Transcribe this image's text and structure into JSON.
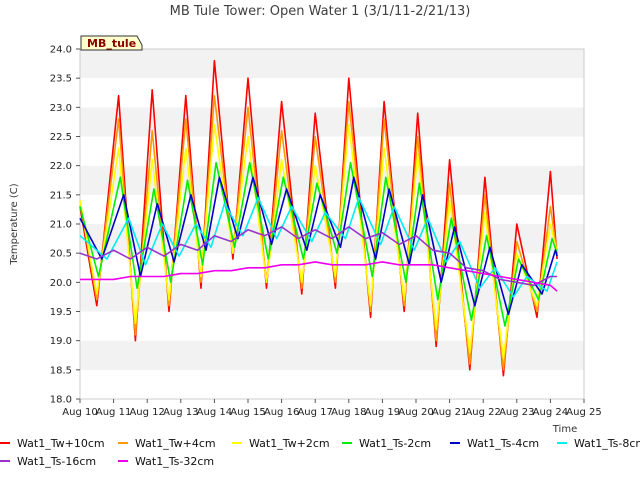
{
  "chart_data": {
    "type": "line",
    "title": "MB Tule Tower: Open Water 1 (3/1/11-2/21/13)",
    "station_label": "MB_tule",
    "xlabel": "Time",
    "ylabel": "Temperature (C)",
    "xlim": [
      10,
      25
    ],
    "ylim": [
      18.0,
      24.0
    ],
    "x_ticks": [
      10,
      11,
      12,
      13,
      14,
      15,
      16,
      17,
      18,
      19,
      20,
      21,
      22,
      23,
      24,
      25
    ],
    "x_tick_labels": [
      "Aug 10",
      "Aug 11",
      "Aug 12",
      "Aug 13",
      "Aug 14",
      "Aug 15",
      "Aug 16",
      "Aug 17",
      "Aug 18",
      "Aug 19",
      "Aug 20",
      "Aug 21",
      "Aug 22",
      "Aug 23",
      "Aug 24",
      "Aug 25"
    ],
    "y_ticks": [
      18.0,
      18.5,
      19.0,
      19.5,
      20.0,
      20.5,
      21.0,
      21.5,
      22.0,
      22.5,
      23.0,
      23.5,
      24.0
    ],
    "y_tick_labels": [
      "18.0",
      "18.5",
      "19.0",
      "19.5",
      "20.0",
      "20.5",
      "21.0",
      "21.5",
      "22.0",
      "22.5",
      "23.0",
      "23.5",
      "24.0"
    ],
    "grid": "horizontal bands",
    "legend_position": "bottom",
    "series": [
      {
        "name": "Wat1_Tw+10cm",
        "color": "#ff0000",
        "x": [
          10.0,
          10.5,
          11.15,
          11.65,
          12.15,
          12.65,
          13.15,
          13.6,
          14.0,
          14.55,
          15.0,
          15.55,
          16.0,
          16.6,
          17.0,
          17.6,
          18.0,
          18.65,
          19.05,
          19.65,
          20.05,
          20.6,
          21.0,
          21.6,
          22.05,
          22.6,
          23.0,
          23.6,
          24.0,
          24.2
        ],
        "y": [
          21.3,
          19.6,
          23.2,
          19.0,
          23.3,
          19.5,
          23.2,
          19.9,
          23.8,
          20.4,
          23.5,
          19.9,
          23.1,
          19.8,
          22.9,
          19.9,
          23.5,
          19.4,
          23.1,
          19.5,
          22.9,
          18.9,
          22.1,
          18.5,
          21.8,
          18.4,
          21.0,
          19.4,
          21.9,
          20.4
        ]
      },
      {
        "name": "Wat1_Tw+4cm",
        "color": "#ff9900",
        "x": [
          10.0,
          10.5,
          11.15,
          11.65,
          12.15,
          12.65,
          13.15,
          13.6,
          14.0,
          14.55,
          15.0,
          15.55,
          16.0,
          16.6,
          17.0,
          17.6,
          18.0,
          18.65,
          19.05,
          19.65,
          20.05,
          20.6,
          21.0,
          21.6,
          22.05,
          22.6,
          23.0,
          23.6,
          24.0,
          24.2
        ],
        "y": [
          21.4,
          19.7,
          22.8,
          19.1,
          22.6,
          19.6,
          22.8,
          20.0,
          23.2,
          20.5,
          23.0,
          20.0,
          22.6,
          19.9,
          22.5,
          20.0,
          23.1,
          19.5,
          22.8,
          19.6,
          22.5,
          19.0,
          21.7,
          18.6,
          21.5,
          18.5,
          20.7,
          19.5,
          21.3,
          20.5
        ]
      },
      {
        "name": "Wat1_Tw+2cm",
        "color": "#ffff00",
        "x": [
          10.0,
          10.5,
          11.15,
          11.65,
          12.15,
          12.65,
          13.15,
          13.6,
          14.0,
          14.55,
          15.0,
          15.55,
          16.0,
          16.6,
          17.0,
          17.6,
          18.0,
          18.65,
          19.05,
          19.65,
          20.05,
          20.6,
          21.0,
          21.6,
          22.05,
          22.6,
          23.0,
          23.6,
          24.0,
          24.2
        ],
        "y": [
          21.4,
          19.8,
          22.3,
          19.3,
          22.1,
          19.7,
          22.3,
          20.1,
          22.7,
          20.5,
          22.5,
          20.0,
          22.1,
          20.0,
          22.0,
          20.1,
          22.7,
          19.6,
          22.3,
          19.7,
          22.2,
          19.2,
          21.4,
          18.8,
          21.2,
          18.7,
          20.5,
          19.6,
          21.0,
          20.5
        ]
      },
      {
        "name": "Wat1_Ts-2cm",
        "color": "#00ee00",
        "x": [
          10.0,
          10.55,
          11.2,
          11.7,
          12.2,
          12.7,
          13.2,
          13.65,
          14.05,
          14.6,
          15.05,
          15.6,
          16.05,
          16.65,
          17.05,
          17.65,
          18.05,
          18.7,
          19.1,
          19.7,
          20.1,
          20.65,
          21.05,
          21.65,
          22.1,
          22.65,
          23.05,
          23.65,
          24.05,
          24.2
        ],
        "y": [
          21.3,
          20.1,
          21.8,
          19.9,
          21.6,
          20.0,
          21.75,
          20.3,
          22.05,
          20.6,
          22.05,
          20.4,
          21.8,
          20.4,
          21.7,
          20.5,
          22.05,
          20.1,
          21.8,
          20.0,
          21.7,
          19.7,
          21.1,
          19.35,
          20.8,
          19.25,
          20.4,
          19.7,
          20.75,
          20.5
        ]
      },
      {
        "name": "Wat1_Ts-4cm",
        "color": "#0000cc",
        "x": [
          10.0,
          10.65,
          11.3,
          11.8,
          12.3,
          12.8,
          13.3,
          13.75,
          14.15,
          14.7,
          15.15,
          15.7,
          16.15,
          16.75,
          17.15,
          17.75,
          18.15,
          18.8,
          19.2,
          19.8,
          20.2,
          20.75,
          21.15,
          21.75,
          22.2,
          22.75,
          23.15,
          23.75,
          24.15,
          24.2
        ],
        "y": [
          21.1,
          20.4,
          21.5,
          20.1,
          21.35,
          20.35,
          21.5,
          20.55,
          21.8,
          20.75,
          21.8,
          20.65,
          21.6,
          20.55,
          21.5,
          20.6,
          21.8,
          20.4,
          21.6,
          20.3,
          21.5,
          20.0,
          20.95,
          19.6,
          20.6,
          19.45,
          20.3,
          19.8,
          20.55,
          20.45
        ]
      },
      {
        "name": "Wat1_Ts-8cm",
        "color": "#00eeee",
        "x": [
          10.0,
          10.8,
          11.45,
          11.95,
          12.45,
          12.95,
          13.45,
          13.9,
          14.3,
          14.85,
          15.3,
          15.85,
          16.3,
          16.9,
          17.3,
          17.9,
          18.3,
          18.95,
          19.35,
          19.95,
          20.35,
          20.9,
          21.3,
          21.9,
          22.35,
          22.9,
          23.3,
          23.9,
          24.2
        ],
        "y": [
          20.8,
          20.4,
          21.1,
          20.3,
          21.0,
          20.45,
          21.0,
          20.6,
          21.35,
          20.8,
          21.45,
          20.75,
          21.3,
          20.7,
          21.2,
          20.75,
          21.45,
          20.65,
          21.3,
          20.55,
          21.1,
          20.35,
          20.7,
          19.9,
          20.25,
          19.75,
          20.1,
          19.85,
          20.35
        ]
      },
      {
        "name": "Wat1_Ts-16cm",
        "color": "#9933cc",
        "x": [
          10.0,
          10.5,
          11.0,
          11.5,
          12.0,
          12.5,
          13.0,
          13.5,
          14.0,
          14.5,
          15.0,
          15.5,
          16.0,
          16.5,
          17.0,
          17.5,
          18.0,
          18.5,
          19.0,
          19.5,
          20.0,
          20.5,
          21.0,
          21.5,
          22.0,
          22.5,
          23.0,
          23.5,
          24.0,
          24.2
        ],
        "y": [
          20.5,
          20.4,
          20.55,
          20.4,
          20.6,
          20.45,
          20.65,
          20.55,
          20.8,
          20.7,
          20.9,
          20.8,
          20.95,
          20.75,
          20.9,
          20.75,
          20.95,
          20.75,
          20.85,
          20.65,
          20.8,
          20.55,
          20.5,
          20.25,
          20.2,
          20.05,
          20.0,
          19.95,
          20.1,
          20.1
        ]
      },
      {
        "name": "Wat1_Ts-32cm",
        "color": "#ee00ee",
        "x": [
          10.0,
          10.5,
          11.0,
          11.5,
          12.0,
          12.5,
          13.0,
          13.5,
          14.0,
          14.5,
          15.0,
          15.5,
          16.0,
          16.5,
          17.0,
          17.5,
          18.0,
          18.5,
          19.0,
          19.5,
          20.0,
          20.5,
          21.0,
          21.5,
          22.0,
          22.5,
          23.0,
          23.5,
          24.0,
          24.2
        ],
        "y": [
          20.05,
          20.05,
          20.05,
          20.1,
          20.1,
          20.1,
          20.15,
          20.15,
          20.2,
          20.2,
          20.25,
          20.25,
          20.3,
          20.3,
          20.35,
          20.3,
          20.3,
          20.3,
          20.35,
          20.3,
          20.3,
          20.3,
          20.25,
          20.2,
          20.15,
          20.1,
          20.05,
          20.0,
          19.95,
          19.85
        ]
      }
    ]
  }
}
